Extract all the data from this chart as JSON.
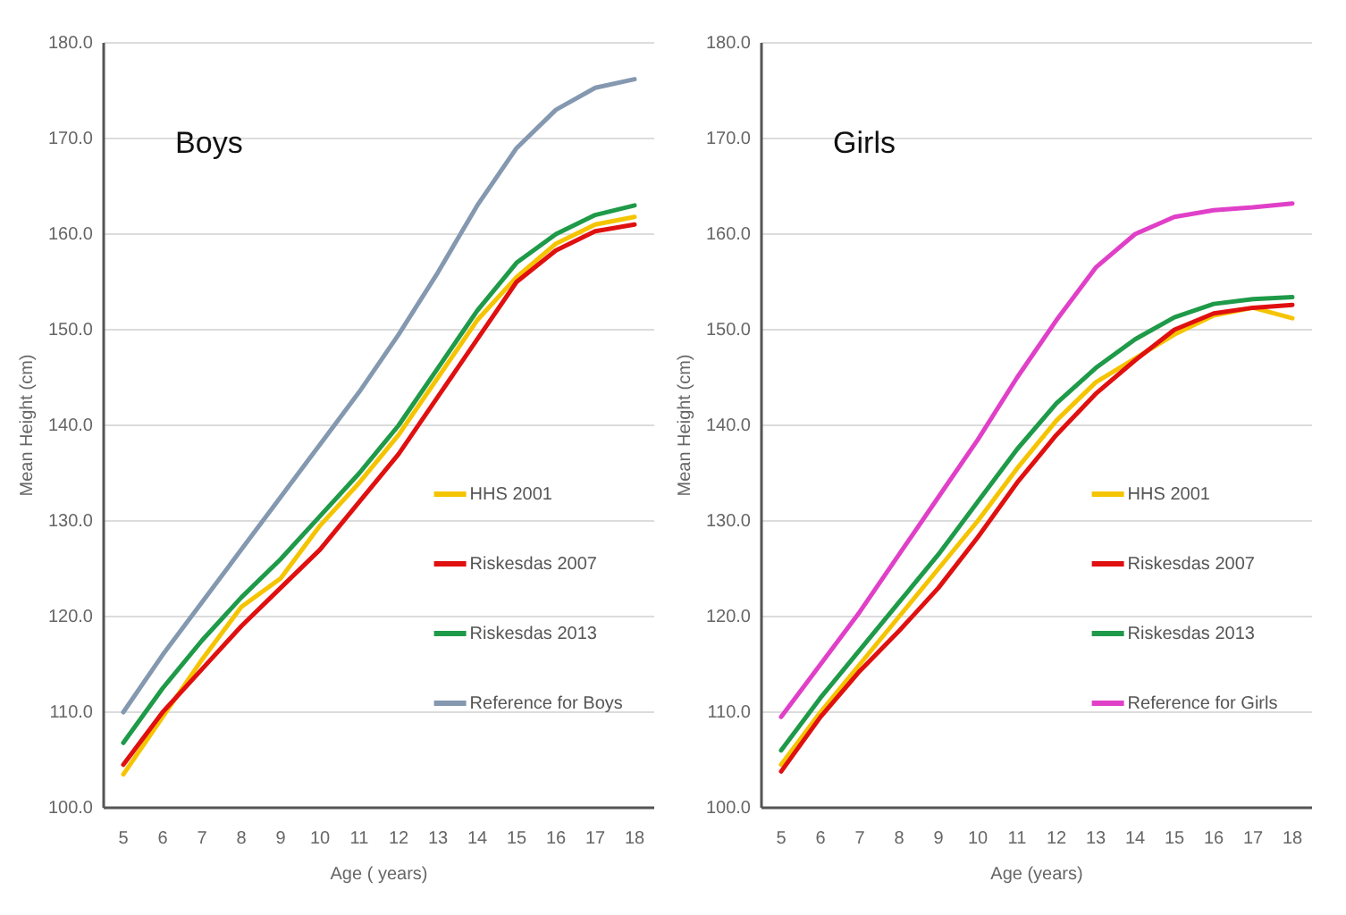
{
  "chart_data": [
    {
      "type": "line",
      "title": "Boys",
      "xlabel": "Age ( years)",
      "ylabel": "Mean Height (cm)",
      "categories": [
        "5",
        "6",
        "7",
        "8",
        "9",
        "10",
        "11",
        "12",
        "13",
        "14",
        "15",
        "16",
        "17",
        "18"
      ],
      "ylim": [
        100,
        180
      ],
      "yticks": [
        {
          "value": 100,
          "label": "100.0"
        },
        {
          "value": 110,
          "label": "110.0"
        },
        {
          "value": 120,
          "label": "120.0"
        },
        {
          "value": 130,
          "label": "130.0"
        },
        {
          "value": 140,
          "label": "140.0"
        },
        {
          "value": 150,
          "label": "150.0"
        },
        {
          "value": 160,
          "label": "160.0"
        },
        {
          "value": 170,
          "label": "170.0"
        },
        {
          "value": 180,
          "label": "180.0"
        }
      ],
      "grid": "y",
      "legend": "right",
      "marker": "none",
      "line_style": "solid",
      "series": [
        {
          "name": "HHS 2001",
          "color": "#f5c400",
          "values": [
            103.5,
            109.5,
            115.5,
            121,
            124,
            129.5,
            134,
            139,
            145,
            151,
            155.5,
            159,
            161,
            161.8
          ]
        },
        {
          "name": "Riskesdas 2007",
          "color": "#e01010",
          "values": [
            104.5,
            110,
            114.5,
            119,
            123,
            127,
            132,
            137,
            143,
            149,
            155,
            158.3,
            160.3,
            161
          ]
        },
        {
          "name": "Riskesdas 2013",
          "color": "#1e9a48",
          "values": [
            106.8,
            112.5,
            117.5,
            122,
            126,
            130.5,
            135,
            140,
            146,
            152,
            157,
            160,
            162,
            163
          ]
        },
        {
          "name": "Reference for Boys",
          "color": "#8498b0",
          "values": [
            110,
            116,
            121.5,
            127,
            132.5,
            138,
            143.5,
            149.5,
            156,
            163,
            169,
            173,
            175.3,
            176.2
          ]
        }
      ]
    },
    {
      "type": "line",
      "title": "Girls",
      "xlabel": "Age (years)",
      "ylabel": "Mean Height (cm)",
      "categories": [
        "5",
        "6",
        "7",
        "8",
        "9",
        "10",
        "11",
        "12",
        "13",
        "14",
        "15",
        "16",
        "17",
        "18"
      ],
      "ylim": [
        100,
        180
      ],
      "yticks": [
        {
          "value": 100,
          "label": "100.0"
        },
        {
          "value": 110,
          "label": "110.0"
        },
        {
          "value": 120,
          "label": "120.0"
        },
        {
          "value": 130,
          "label": "130.0"
        },
        {
          "value": 140,
          "label": "140.0"
        },
        {
          "value": 150,
          "label": "150.0"
        },
        {
          "value": 160,
          "label": "160.0"
        },
        {
          "value": 170,
          "label": "170.0"
        },
        {
          "value": 180,
          "label": "180.0"
        }
      ],
      "grid": "y",
      "legend": "right",
      "marker": "none",
      "line_style": "solid",
      "series": [
        {
          "name": "HHS 2001",
          "color": "#f5c400",
          "values": [
            104.5,
            110,
            115,
            120,
            125,
            130,
            135.5,
            140.5,
            144.5,
            147,
            149.5,
            151.5,
            152.3,
            151.2
          ]
        },
        {
          "name": "Riskesdas 2007",
          "color": "#e01010",
          "values": [
            103.8,
            109.5,
            114.3,
            118.5,
            123,
            128.3,
            134,
            139,
            143.3,
            146.8,
            150,
            151.7,
            152.3,
            152.6
          ]
        },
        {
          "name": "Riskesdas 2013",
          "color": "#1e9a48",
          "values": [
            106,
            111.5,
            116.5,
            121.5,
            126.5,
            132,
            137.5,
            142.3,
            146,
            149,
            151.3,
            152.7,
            153.2,
            153.4
          ]
        },
        {
          "name": "Reference for Girls",
          "color": "#e040c8",
          "values": [
            109.5,
            115,
            120.5,
            126.5,
            132.5,
            138.5,
            145,
            151,
            156.5,
            160,
            161.8,
            162.5,
            162.8,
            163.2
          ]
        }
      ]
    }
  ]
}
